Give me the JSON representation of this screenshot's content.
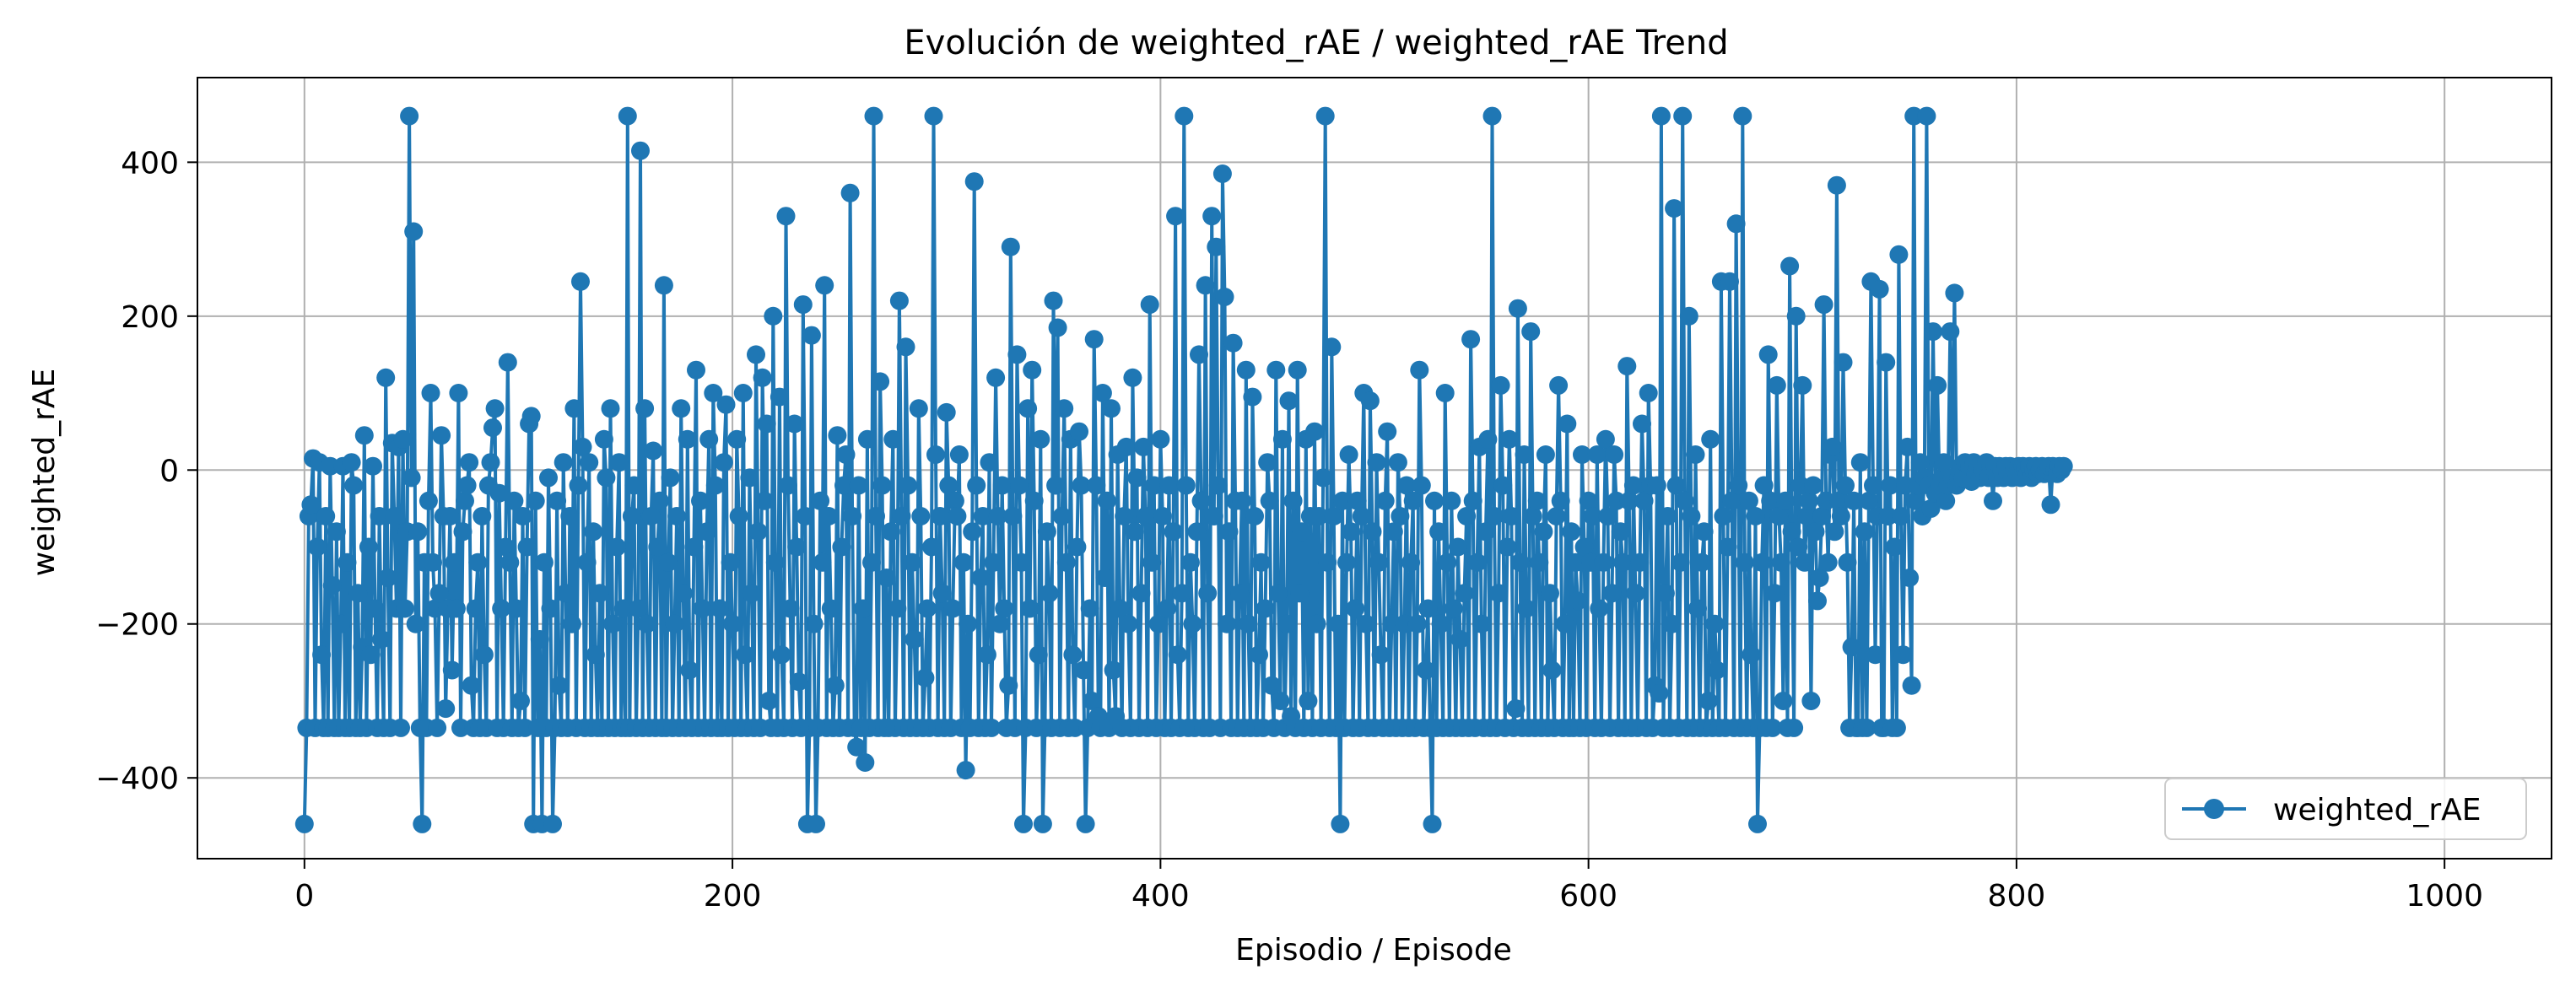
{
  "chart_data": {
    "type": "line",
    "title": "Evolución de weighted_rAE / weighted_rAE Trend",
    "xlabel": "Episodio / Episode",
    "ylabel": "weighted_rAE",
    "xlim": [
      -50,
      1050
    ],
    "ylim": [
      -505,
      510
    ],
    "xticks": [
      0,
      200,
      400,
      600,
      800,
      1000
    ],
    "xtick_labels": [
      "0",
      "200",
      "400",
      "600",
      "800",
      "1000"
    ],
    "yticks": [
      -400,
      -200,
      0,
      200,
      400
    ],
    "ytick_labels": [
      "−400",
      "−200",
      "0",
      "200",
      "400"
    ],
    "grid": true,
    "legend_position": "lower-right",
    "marker": "circle",
    "series": [
      {
        "name": "weighted_rAE",
        "color": "#1f77b4",
        "x_start": 0,
        "x_step": 1,
        "values": [
          -460,
          -335,
          -60,
          -45,
          15,
          -335,
          -100,
          10,
          -240,
          -335,
          -60,
          -335,
          5,
          -150,
          -335,
          -80,
          -335,
          -200,
          5,
          -335,
          -120,
          -335,
          10,
          -20,
          -335,
          -160,
          -335,
          -230,
          45,
          -335,
          -100,
          -240,
          5,
          -180,
          -335,
          -60,
          -220,
          -335,
          120,
          -140,
          -335,
          35,
          -60,
          -180,
          30,
          -335,
          40,
          -180,
          -80,
          460,
          -10,
          310,
          -200,
          -80,
          -335,
          -460,
          -120,
          -335,
          -40,
          100,
          -120,
          -180,
          -335,
          -160,
          45,
          -60,
          -310,
          -180,
          -60,
          -260,
          -120,
          -180,
          100,
          -335,
          -80,
          -40,
          -20,
          10,
          -280,
          -335,
          -180,
          -120,
          -335,
          -60,
          -240,
          -335,
          -20,
          10,
          55,
          80,
          -335,
          -30,
          -180,
          -335,
          -100,
          140,
          -120,
          -335,
          -40,
          -180,
          -335,
          -300,
          -60,
          -335,
          -100,
          60,
          70,
          -460,
          -40,
          -335,
          -220,
          -460,
          -120,
          -335,
          -10,
          -180,
          -460,
          -335,
          -40,
          -280,
          -335,
          10,
          -160,
          -335,
          -60,
          -200,
          80,
          -335,
          -20,
          245,
          30,
          -335,
          -120,
          10,
          -335,
          -80,
          -240,
          -335,
          -160,
          -335,
          40,
          -10,
          -335,
          80,
          -200,
          -335,
          -100,
          10,
          -335,
          -180,
          -335,
          460,
          -335,
          -60,
          -20,
          -335,
          -180,
          415,
          -335,
          80,
          -200,
          -335,
          -60,
          25,
          -335,
          -100,
          -40,
          -335,
          240,
          -335,
          -120,
          -10,
          -335,
          -200,
          -60,
          -335,
          80,
          -160,
          -335,
          40,
          -260,
          -335,
          -100,
          130,
          -335,
          -40,
          -180,
          -335,
          -80,
          40,
          -335,
          100,
          -20,
          -335,
          -180,
          -335,
          10,
          85,
          -335,
          -120,
          -200,
          -335,
          40,
          -60,
          -335,
          100,
          -240,
          -335,
          -10,
          -160,
          -335,
          150,
          -80,
          -335,
          120,
          -40,
          60,
          -300,
          -335,
          200,
          -120,
          -335,
          95,
          -240,
          -335,
          330,
          -20,
          -180,
          -335,
          60,
          -100,
          -275,
          -335,
          215,
          -60,
          -460,
          -335,
          175,
          -200,
          -460,
          -335,
          -40,
          -120,
          240,
          -335,
          -60,
          -180,
          -335,
          -280,
          45,
          -335,
          -100,
          -20,
          20,
          -335,
          360,
          -60,
          -335,
          -360,
          -20,
          -335,
          -180,
          -380,
          40,
          -335,
          -120,
          460,
          -60,
          -335,
          115,
          -20,
          -335,
          -140,
          -335,
          -80,
          40,
          -335,
          -180,
          220,
          -60,
          -335,
          160,
          -20,
          -335,
          -120,
          -220,
          -335,
          80,
          -60,
          -335,
          -270,
          -180,
          -335,
          -100,
          460,
          20,
          -335,
          -60,
          -160,
          -335,
          75,
          -20,
          -335,
          -180,
          -40,
          -60,
          20,
          -335,
          -120,
          -390,
          -200,
          -335,
          -80,
          375,
          -20,
          -335,
          -140,
          -60,
          -335,
          -240,
          10,
          -335,
          -120,
          120,
          -60,
          -200,
          -20,
          -180,
          -335,
          -280,
          290,
          -60,
          -335,
          150,
          -20,
          -120,
          -460,
          -335,
          80,
          -180,
          130,
          -40,
          -335,
          -240,
          40,
          -460,
          -335,
          -80,
          -160,
          -335,
          220,
          -20,
          185,
          -335,
          -60,
          80,
          -120,
          -335,
          40,
          -240,
          -335,
          -100,
          50,
          -20,
          -260,
          -460,
          -335,
          -180,
          -300,
          170,
          -20,
          -320,
          -335,
          100,
          -140,
          -40,
          -335,
          80,
          -260,
          -320,
          20,
          -180,
          -335,
          -60,
          30,
          -200,
          -335,
          120,
          -80,
          -10,
          -335,
          -160,
          30,
          -60,
          -335,
          215,
          -120,
          -20,
          -335,
          -200,
          40,
          -60,
          -335,
          -180,
          -20,
          -335,
          -80,
          330,
          -240,
          -335,
          -160,
          460,
          -20,
          -335,
          -120,
          -200,
          -335,
          -80,
          150,
          -40,
          -335,
          240,
          -160,
          -335,
          330,
          -60,
          290,
          -20,
          -335,
          385,
          225,
          -200,
          -80,
          -335,
          165,
          -40,
          -335,
          -160,
          -40,
          -335,
          130,
          -200,
          -335,
          95,
          -60,
          -335,
          -240,
          -120,
          -335,
          -180,
          10,
          -40,
          -280,
          -335,
          130,
          -160,
          -300,
          40,
          -335,
          -200,
          90,
          -320,
          -40,
          -335,
          130,
          -160,
          -80,
          -335,
          40,
          -300,
          -60,
          -335,
          50,
          -200,
          -60,
          -335,
          -10,
          460,
          -120,
          -335,
          160,
          -60,
          -335,
          -200,
          -460,
          -40,
          -335,
          -120,
          20,
          -80,
          -335,
          -180,
          -40,
          -335,
          -60,
          100,
          -200,
          -335,
          90,
          -80,
          -335,
          10,
          -120,
          -240,
          -335,
          -40,
          50,
          -335,
          -200,
          -80,
          -335,
          10,
          -60,
          -335,
          -200,
          -20,
          -335,
          -120,
          -40,
          -335,
          -200,
          130,
          -20,
          -335,
          -260,
          -180,
          -335,
          -460,
          -40,
          -335,
          -80,
          -200,
          -335,
          100,
          -120,
          -335,
          -40,
          -180,
          -335,
          -100,
          -220,
          -335,
          -160,
          -60,
          -335,
          170,
          -40,
          -335,
          -120,
          30,
          -200,
          -335,
          -80,
          40,
          -335,
          460,
          -60,
          -335,
          -160,
          110,
          -20,
          -335,
          -100,
          40,
          -60,
          -335,
          -310,
          210,
          -120,
          -335,
          20,
          -180,
          -335,
          180,
          -60,
          -335,
          -40,
          -120,
          -335,
          -80,
          20,
          -335,
          -160,
          -260,
          -335,
          -60,
          110,
          -40,
          -335,
          -200,
          60,
          -335,
          -80,
          -335,
          -120,
          -170,
          -335,
          20,
          -100,
          -335,
          -40,
          -120,
          -60,
          -335,
          20,
          -180,
          -335,
          -120,
          40,
          -60,
          -335,
          -160,
          20,
          -40,
          -335,
          -80,
          -120,
          -335,
          135,
          -40,
          -335,
          -20,
          -160,
          -335,
          -120,
          60,
          -40,
          -335,
          100,
          -20,
          -335,
          -280,
          -20,
          -290,
          460,
          -335,
          -160,
          -60,
          -335,
          -200,
          340,
          -20,
          -335,
          -120,
          460,
          -40,
          -335,
          200,
          -60,
          -335,
          20,
          -180,
          -335,
          -120,
          -80,
          -335,
          -300,
          40,
          -335,
          -200,
          -260,
          -335,
          245,
          -60,
          -335,
          -100,
          245,
          -40,
          -335,
          320,
          -20,
          -335,
          460,
          -120,
          -335,
          -40,
          -240,
          -335,
          -60,
          -460,
          -335,
          -120,
          -20,
          -335,
          150,
          -40,
          -335,
          -160,
          110,
          -60,
          -120,
          -300,
          -40,
          -335,
          265,
          -80,
          -335,
          200,
          -100,
          -20,
          110,
          -120,
          -60,
          -40,
          -300,
          -20,
          -80,
          -170,
          -140,
          -60,
          215,
          -40,
          -120,
          20,
          30,
          -80,
          370,
          -40,
          -60,
          140,
          -20,
          -120,
          -335,
          -230,
          -40,
          -335,
          -335,
          10,
          -335,
          -80,
          -335,
          -40,
          245,
          -20,
          -240,
          -60,
          235,
          -335,
          -335,
          140,
          -60,
          -20,
          -335,
          -100,
          -335,
          280,
          -60,
          -240,
          -20,
          30,
          -140,
          -280,
          460,
          -40,
          -20,
          10,
          -60,
          -10,
          460,
          -20,
          -50,
          180,
          -30,
          110,
          -20,
          -10,
          10,
          -40,
          -20,
          180,
          -10,
          230,
          -20,
          -10,
          5,
          -10,
          10,
          -10,
          5,
          -15,
          10,
          -5,
          5,
          -10,
          0,
          -5,
          10,
          -10,
          5,
          -40,
          5,
          -10,
          5,
          0,
          -10,
          5,
          -5,
          5,
          -10,
          0,
          -5,
          5,
          -10,
          5,
          0,
          -5,
          5,
          -10,
          0,
          5,
          -5,
          0,
          5,
          -5,
          0,
          5,
          -45,
          5,
          0,
          -5,
          5,
          0,
          5
        ]
      }
    ]
  }
}
